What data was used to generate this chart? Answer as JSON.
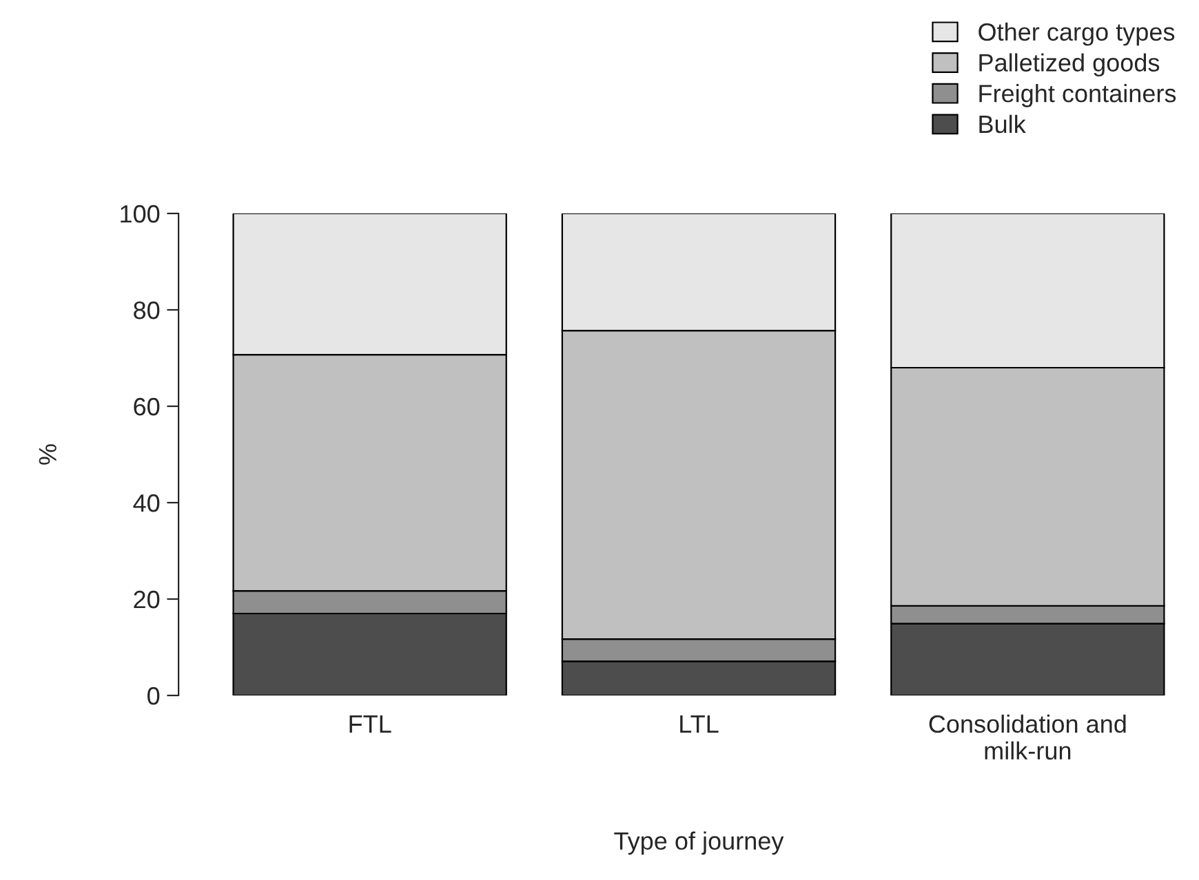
{
  "chart_data": {
    "type": "bar",
    "stacked": true,
    "xlabel": "Type of journey",
    "ylabel": "%",
    "categories": [
      "FTL",
      "LTL",
      "Consolidation and\nmilk-run"
    ],
    "series": [
      {
        "name": "Bulk",
        "color": "#4d4d4d",
        "values": [
          17,
          7.1,
          14.9
        ]
      },
      {
        "name": "Freight containers",
        "color": "#8f8f8f",
        "values": [
          4.7,
          4.6,
          3.7
        ]
      },
      {
        "name": "Palletized goods",
        "color": "#c0c0c0",
        "values": [
          49,
          64,
          49.4
        ]
      },
      {
        "name": "Other cargo types",
        "color": "#e6e6e6",
        "values": [
          29.3,
          24.3,
          32
        ]
      }
    ],
    "ylim": [
      0,
      100
    ],
    "yticks": [
      0,
      20,
      40,
      60,
      80,
      100
    ],
    "grid": false,
    "legend": "top right"
  }
}
